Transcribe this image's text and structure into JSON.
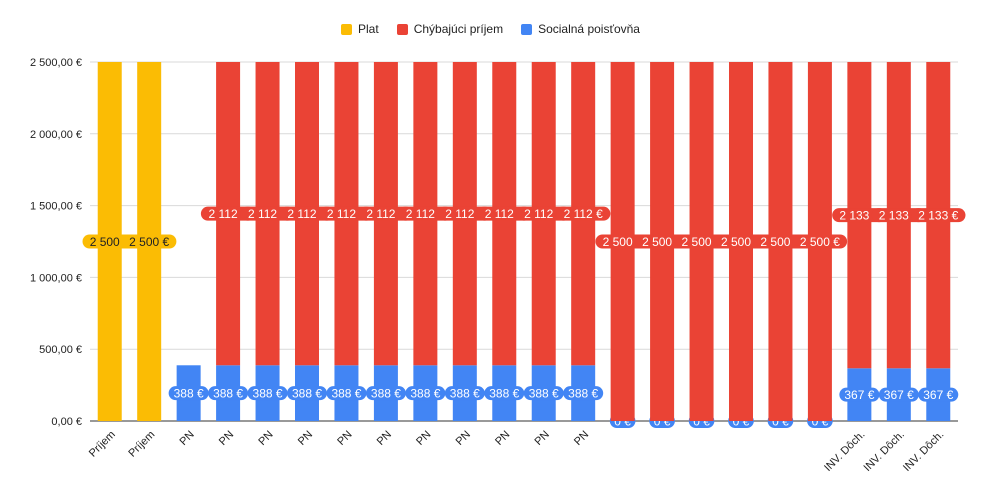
{
  "chart_data": {
    "type": "bar",
    "stacked": true,
    "categories": [
      "Príjem",
      "Príjem",
      "PN",
      "PN",
      "PN",
      "PN",
      "PN",
      "PN",
      "PN",
      "PN",
      "PN",
      "PN",
      "PN",
      "",
      "",
      "",
      "",
      "",
      "",
      "INV. Dôch.",
      "INV. Dôch.",
      "INV. Dôch."
    ],
    "series": [
      {
        "name": "Plat",
        "color": "#fbbc04",
        "values": [
          2500,
          2500,
          0,
          0,
          0,
          0,
          0,
          0,
          0,
          0,
          0,
          0,
          0,
          0,
          0,
          0,
          0,
          0,
          0,
          0,
          0,
          0
        ],
        "labels": [
          "2 500 €",
          "2 500 €",
          "",
          "",
          "",
          "",
          "",
          "",
          "",
          "",
          "",
          "",
          "",
          "",
          "",
          "",
          "",
          "",
          "",
          "",
          "",
          ""
        ]
      },
      {
        "name": "Socialná poisťovňa",
        "color": "#4285f4",
        "values": [
          0,
          0,
          388,
          388,
          388,
          388,
          388,
          388,
          388,
          388,
          388,
          388,
          388,
          0,
          0,
          0,
          0,
          0,
          0,
          367,
          367,
          367
        ],
        "labels": [
          "",
          "",
          "388 €",
          "388 €",
          "388 €",
          "388 €",
          "388 €",
          "388 €",
          "388 €",
          "388 €",
          "388 €",
          "388 €",
          "388 €",
          "0 €",
          "0 €",
          "0 €",
          "0 €",
          "0 €",
          "0 €",
          "367 €",
          "367 €",
          "367 €"
        ]
      },
      {
        "name": "Chýbajúci príjem",
        "color": "#ea4335",
        "values": [
          0,
          0,
          0,
          2112,
          2112,
          2112,
          2112,
          2112,
          2112,
          2112,
          2112,
          2112,
          2112,
          2500,
          2500,
          2500,
          2500,
          2500,
          2500,
          2133,
          2133,
          2133
        ],
        "labels": [
          "",
          "",
          "",
          "2 112 €",
          "2 112 €",
          "2 112 €",
          "2 112 €",
          "2 112 €",
          "2 112 €",
          "2 112 €",
          "2 112 €",
          "2 112 €",
          "2 112 €",
          "2 500 €",
          "2 500 €",
          "2 500 €",
          "2 500 €",
          "2 500 €",
          "2 500 €",
          "2 133 €",
          "2 133 €",
          "2 133 €"
        ]
      }
    ],
    "legend_order": [
      "Plat",
      "Chýbajúci príjem",
      "Socialná poisťovňa"
    ],
    "y_ticks": [
      0,
      500,
      1000,
      1500,
      2000,
      2500
    ],
    "y_tick_labels": [
      "0,00 €",
      "500,00 €",
      "1 000,00 €",
      "1 500,00 €",
      "2 000,00 €",
      "2 500,00 €"
    ],
    "ylim": [
      0,
      2500
    ],
    "grid": true,
    "legend_position": "top"
  }
}
